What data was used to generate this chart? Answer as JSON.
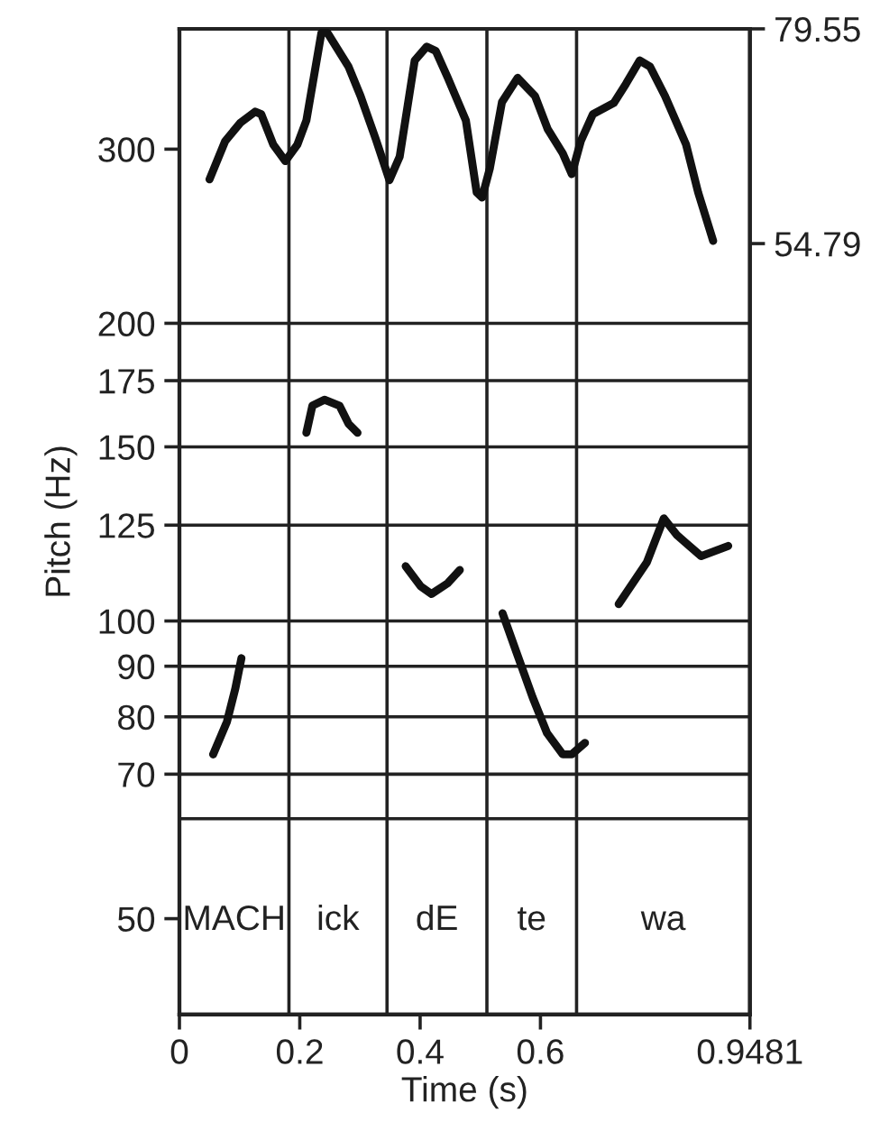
{
  "chart_data": {
    "type": "line",
    "xlabel": "Time (s)",
    "ylabel": "Pitch (Hz)",
    "log": "y",
    "xlim": [
      0,
      0.9481
    ],
    "xticks": [
      0,
      0.2,
      0.4,
      0.6,
      0.9481
    ],
    "ylim": [
      40,
      397
    ],
    "yticks": [
      50,
      70,
      80,
      90,
      100,
      125,
      150,
      175,
      200,
      300
    ],
    "y2lim": [
      -34.1,
      79.55
    ],
    "y2ticks": [
      54.79,
      79.55
    ],
    "series": [
      {
        "color": "#111111",
        "x": [
          0.056,
          0.079,
          0.093,
          0.103,
          0.16,
          0.211,
          0.221,
          0.241,
          0.266,
          0.281,
          0.296,
          0.34,
          0.376,
          0.401,
          0.419,
          0.446,
          0.466,
          0.5,
          0.537,
          0.562,
          0.587,
          0.611,
          0.637,
          0.652,
          0.674,
          0.7,
          0.73,
          0.777,
          0.805,
          0.827,
          0.867,
          0.912
        ],
        "values": [
          73.3,
          79.1,
          85.5,
          91.7,
          null,
          155.0,
          165.1,
          167.4,
          165.1,
          158.3,
          155.0,
          null,
          113.6,
          108.4,
          106.5,
          109.2,
          112.6,
          null,
          101.8,
          92.3,
          83.7,
          77.0,
          73.3,
          73.3,
          75.3,
          null,
          104.0,
          114.7,
          127.0,
          122.1,
          116.3,
          119.1
        ]
      },
      {
        "color": "#111111",
        "axis": "y2",
        "x": [
          0.05,
          0.076,
          0.101,
          0.126,
          0.136,
          0.156,
          0.176,
          0.196,
          0.211,
          0.236,
          0.246,
          0.281,
          0.301,
          0.326,
          0.349,
          0.366,
          0.391,
          0.411,
          0.426,
          0.446,
          0.476,
          0.494,
          0.503,
          0.516,
          0.536,
          0.562,
          0.591,
          0.612,
          0.637,
          0.652,
          0.667,
          0.687,
          0.722,
          0.742,
          0.765,
          0.782,
          0.807,
          0.842,
          0.862,
          0.887
        ],
        "values": [
          62.2,
          66.6,
          68.7,
          70.0,
          69.7,
          66.2,
          64.3,
          66.2,
          69.0,
          79.1,
          79.1,
          75.2,
          71.8,
          66.9,
          62.1,
          64.8,
          75.9,
          77.5,
          77.0,
          73.9,
          69.0,
          60.7,
          60.1,
          63.5,
          71.1,
          73.9,
          71.8,
          68.0,
          65.2,
          62.8,
          66.6,
          69.7,
          71.0,
          73.2,
          75.9,
          75.2,
          71.8,
          66.2,
          60.7,
          55.1
        ]
      }
    ],
    "ref_lines": [
      {
        "axis": "y",
        "value": 200
      },
      {
        "axis": "y",
        "value": 175
      },
      {
        "axis": "y",
        "value": 150
      },
      {
        "axis": "y",
        "value": 125
      },
      {
        "axis": "y",
        "value": 100
      },
      {
        "axis": "y",
        "value": 90
      },
      {
        "axis": "y",
        "value": 80
      },
      {
        "axis": "y",
        "value": 70
      },
      {
        "axis": "y",
        "value": 63.1
      },
      {
        "axis": "x",
        "value": 0.182
      },
      {
        "axis": "x",
        "value": 0.345
      },
      {
        "axis": "x",
        "value": 0.511
      },
      {
        "axis": "x",
        "value": 0.66
      }
    ],
    "annotations": [
      "MACH",
      "ick",
      "dE",
      "te",
      "wa"
    ]
  }
}
